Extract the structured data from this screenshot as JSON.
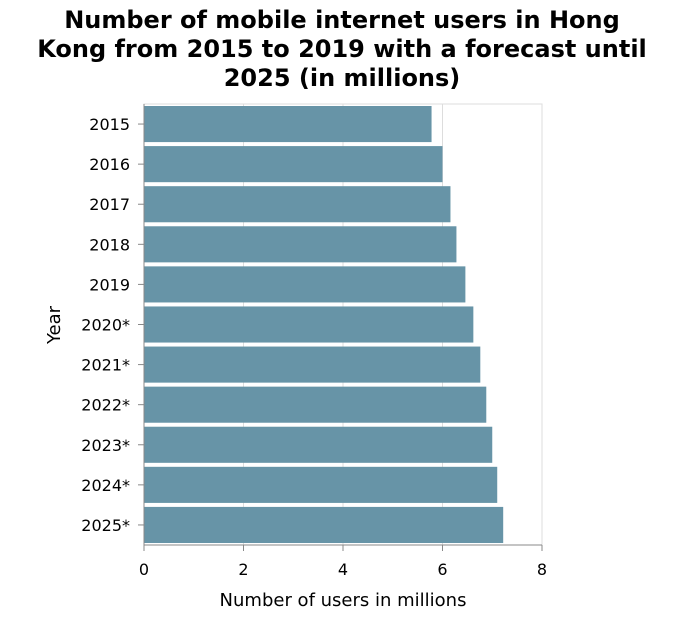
{
  "chart_data": {
    "type": "bar",
    "orientation": "horizontal",
    "title_lines": [
      "Number of mobile internet users in Hong",
      "Kong from 2015 to 2019 with a forecast until",
      "2025 (in millions)"
    ],
    "title": "Number of mobile internet users in Hong Kong from 2015 to 2019 with a forecast until 2025 (in millions)",
    "xlabel": "Number of users in millions",
    "ylabel": "Year",
    "categories": [
      "2015",
      "2016",
      "2017",
      "2018",
      "2019",
      "2020*",
      "2021*",
      "2022*",
      "2023*",
      "2024*",
      "2025*"
    ],
    "values": [
      5.78,
      6.0,
      6.16,
      6.28,
      6.46,
      6.62,
      6.76,
      6.88,
      7.0,
      7.1,
      7.22
    ],
    "xlim": [
      0,
      8
    ],
    "xticks": [
      "0",
      "2",
      "4",
      "6",
      "8"
    ],
    "bar_color": "#6794a7",
    "grid": true
  }
}
